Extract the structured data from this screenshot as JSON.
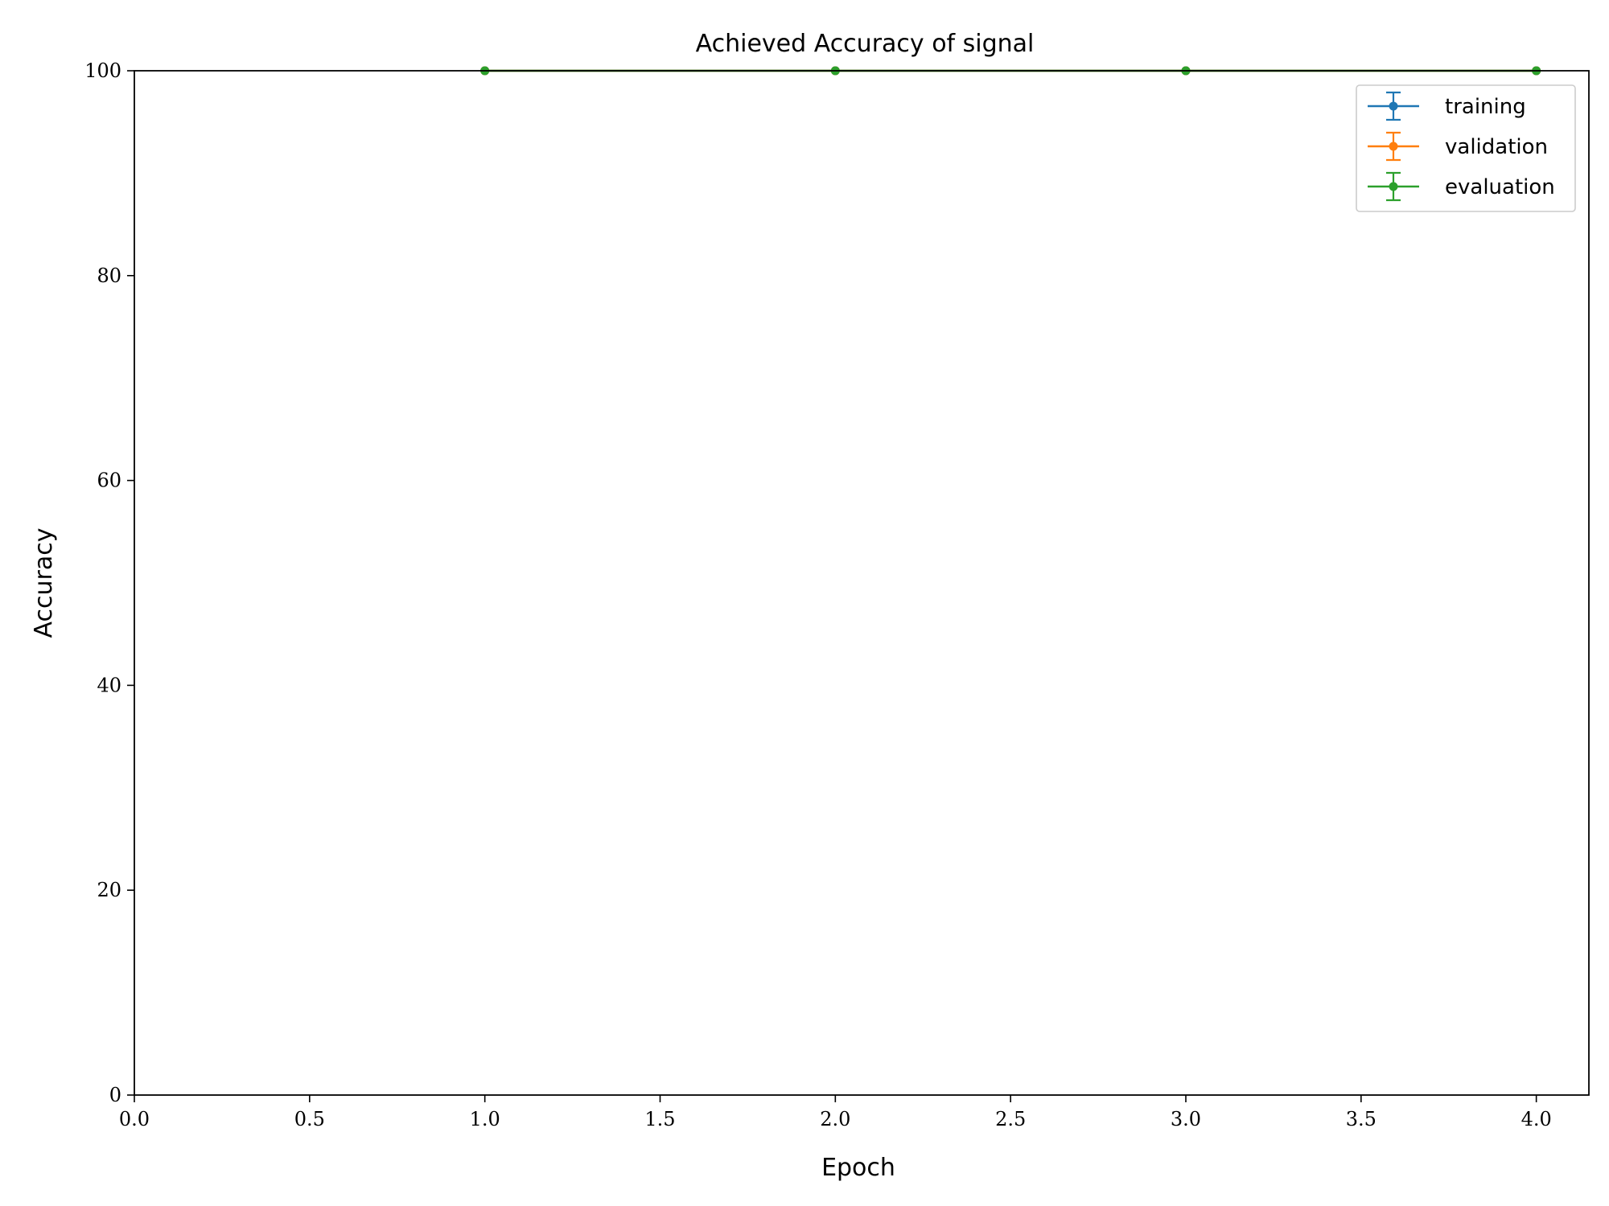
{
  "chart_data": {
    "type": "line",
    "title": "Achieved Accuracy of signal",
    "xlabel": "Epoch",
    "ylabel": "Accuracy",
    "xlim": [
      0,
      4.15
    ],
    "ylim": [
      0,
      100
    ],
    "xticks": [
      0.0,
      0.5,
      1.0,
      1.5,
      2.0,
      2.5,
      3.0,
      3.5,
      4.0
    ],
    "xtick_labels": [
      "0.0",
      "0.5",
      "1.0",
      "1.5",
      "2.0",
      "2.5",
      "3.0",
      "3.5",
      "4.0"
    ],
    "yticks": [
      0,
      20,
      40,
      60,
      80,
      100
    ],
    "ytick_labels": [
      "0",
      "20",
      "40",
      "60",
      "80",
      "100"
    ],
    "grid": false,
    "legend_position": "top-right",
    "series": [
      {
        "name": "training",
        "color": "#1f77b4",
        "x": [
          1,
          2,
          3,
          4
        ],
        "y": [
          100,
          100,
          100,
          100
        ],
        "error_bars": true
      },
      {
        "name": "validation",
        "color": "#ff7f0e",
        "x": [
          1,
          2,
          3,
          4
        ],
        "y": [
          100,
          100,
          100,
          100
        ],
        "error_bars": true
      },
      {
        "name": "evaluation",
        "color": "#2ca02c",
        "x": [
          1,
          2,
          3,
          4
        ],
        "y": [
          100,
          100,
          100,
          100
        ],
        "error_bars": true
      }
    ]
  }
}
